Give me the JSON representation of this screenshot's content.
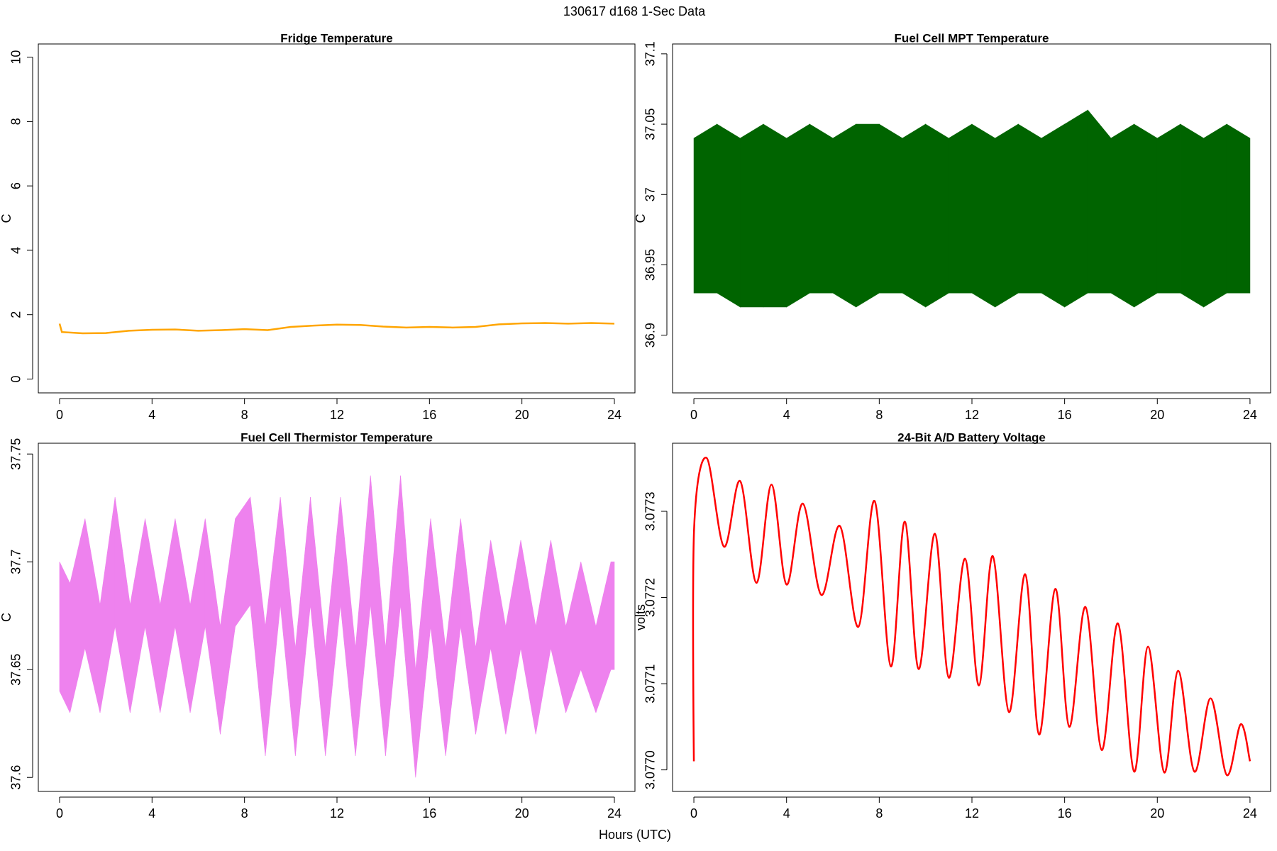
{
  "title": "130617   d168   1-Sec Data",
  "xlabel": "Hours (UTC)",
  "chart_data": [
    {
      "type": "line",
      "title": "Fridge Temperature",
      "ylabel": "C",
      "color": "#ffa500",
      "x": [
        0,
        0.1,
        1,
        2,
        3,
        4,
        5,
        6,
        7,
        8,
        9,
        10,
        11,
        12,
        13,
        14,
        15,
        16,
        17,
        18,
        19,
        20,
        21,
        22,
        23,
        24
      ],
      "values": [
        1.72,
        1.46,
        1.42,
        1.43,
        1.5,
        1.53,
        1.54,
        1.5,
        1.52,
        1.55,
        1.52,
        1.62,
        1.66,
        1.69,
        1.68,
        1.63,
        1.6,
        1.62,
        1.6,
        1.62,
        1.7,
        1.73,
        1.74,
        1.72,
        1.74,
        1.72
      ],
      "xlim": [
        -0.92,
        24.89
      ],
      "xticks": [
        0,
        4,
        8,
        12,
        16,
        20,
        24
      ],
      "ylim": [
        -0.43,
        10.41
      ],
      "yticks": [
        0,
        2,
        4,
        6,
        8,
        10
      ]
    },
    {
      "type": "band",
      "title": "Fuel Cell MPT Temperature",
      "ylabel": "C",
      "color": "#006400",
      "x": [
        0,
        1,
        2,
        3,
        4,
        5,
        6,
        7,
        8,
        9,
        10,
        11,
        12,
        13,
        14,
        15,
        16,
        17,
        18,
        19,
        20,
        21,
        22,
        23,
        24
      ],
      "upper": [
        37.04,
        37.05,
        37.04,
        37.05,
        37.04,
        37.05,
        37.04,
        37.05,
        37.05,
        37.04,
        37.05,
        37.04,
        37.05,
        37.04,
        37.05,
        37.04,
        37.05,
        37.06,
        37.04,
        37.05,
        37.04,
        37.05,
        37.04,
        37.05,
        37.04
      ],
      "lower": [
        36.93,
        36.93,
        36.92,
        36.92,
        36.92,
        36.93,
        36.93,
        36.92,
        36.93,
        36.93,
        36.92,
        36.93,
        36.93,
        36.92,
        36.93,
        36.93,
        36.92,
        36.93,
        36.93,
        36.92,
        36.93,
        36.93,
        36.92,
        36.93,
        36.93
      ],
      "xlim": [
        -0.92,
        24.89
      ],
      "xticks": [
        0,
        4,
        8,
        12,
        16,
        20,
        24
      ],
      "ylim": [
        36.859,
        37.107
      ],
      "yticks": [
        36.9,
        36.95,
        37,
        37.05,
        37.1
      ]
    },
    {
      "type": "band",
      "title": "Fuel Cell Thermistor Temperature",
      "ylabel": "C",
      "color": "#ee82ee",
      "x": [
        0,
        0.45,
        1.1,
        1.75,
        2.4,
        3.05,
        3.7,
        4.35,
        5,
        5.65,
        6.3,
        6.95,
        7.6,
        8.25,
        8.9,
        9.55,
        10.2,
        10.85,
        11.5,
        12.15,
        12.8,
        13.45,
        14.1,
        14.75,
        15.4,
        16.05,
        16.7,
        17.35,
        18,
        18.65,
        19.3,
        19.95,
        20.6,
        21.25,
        21.9,
        22.55,
        23.2,
        23.85,
        24
      ],
      "upper": [
        37.7,
        37.69,
        37.72,
        37.68,
        37.73,
        37.68,
        37.72,
        37.68,
        37.72,
        37.68,
        37.72,
        37.67,
        37.72,
        37.73,
        37.67,
        37.73,
        37.66,
        37.73,
        37.66,
        37.73,
        37.66,
        37.74,
        37.66,
        37.74,
        37.65,
        37.72,
        37.66,
        37.72,
        37.66,
        37.71,
        37.67,
        37.71,
        37.67,
        37.71,
        37.67,
        37.7,
        37.67,
        37.7,
        37.7
      ],
      "lower": [
        37.64,
        37.63,
        37.66,
        37.63,
        37.67,
        37.63,
        37.67,
        37.63,
        37.67,
        37.63,
        37.67,
        37.62,
        37.67,
        37.68,
        37.61,
        37.68,
        37.61,
        37.68,
        37.61,
        37.68,
        37.61,
        37.68,
        37.61,
        37.68,
        37.6,
        37.67,
        37.61,
        37.67,
        37.62,
        37.66,
        37.62,
        37.66,
        37.62,
        37.66,
        37.63,
        37.65,
        37.63,
        37.65,
        37.65
      ],
      "xlim": [
        -0.92,
        24.89
      ],
      "xticks": [
        0,
        4,
        8,
        12,
        16,
        20,
        24
      ],
      "ylim": [
        37.5935,
        37.755
      ],
      "yticks": [
        37.6,
        37.65,
        37.7,
        37.75
      ]
    },
    {
      "type": "curve",
      "title": "24-Bit A/D Battery Voltage",
      "ylabel": "volts",
      "color": "#ff0000",
      "x": [
        0,
        0.01,
        0.55,
        1.3,
        2,
        2.7,
        3.35,
        4,
        4.7,
        5.5,
        6.3,
        7.1,
        7.8,
        8.5,
        9.1,
        9.7,
        10.4,
        11,
        11.7,
        12.3,
        12.9,
        13.6,
        14.3,
        14.9,
        15.6,
        16.2,
        16.9,
        17.6,
        18.3,
        19,
        19.6,
        20.3,
        20.9,
        21.6,
        22.3,
        23,
        23.6,
        24
      ],
      "values": [
        3.07701,
        3.07728,
        3.077362,
        3.077259,
        3.077335,
        3.077217,
        3.077331,
        3.077215,
        3.077309,
        3.077203,
        3.077283,
        3.077166,
        3.077312,
        3.07712,
        3.077288,
        3.077117,
        3.077274,
        3.077107,
        3.077245,
        3.077098,
        3.077248,
        3.077067,
        3.077227,
        3.077041,
        3.07721,
        3.07705,
        3.077189,
        3.077023,
        3.07717,
        3.076998,
        3.077143,
        3.076997,
        3.077115,
        3.076998,
        3.077083,
        3.076994,
        3.077053,
        3.07701
      ],
      "xlim": [
        -0.92,
        24.89
      ],
      "xticks": [
        0,
        4,
        8,
        12,
        16,
        20,
        24
      ],
      "ylim": [
        3.076975,
        3.077379
      ],
      "yticks": [
        {
          "value": 3.077,
          "label": "3.0770"
        },
        3.0771,
        3.0772,
        3.0773
      ]
    }
  ]
}
